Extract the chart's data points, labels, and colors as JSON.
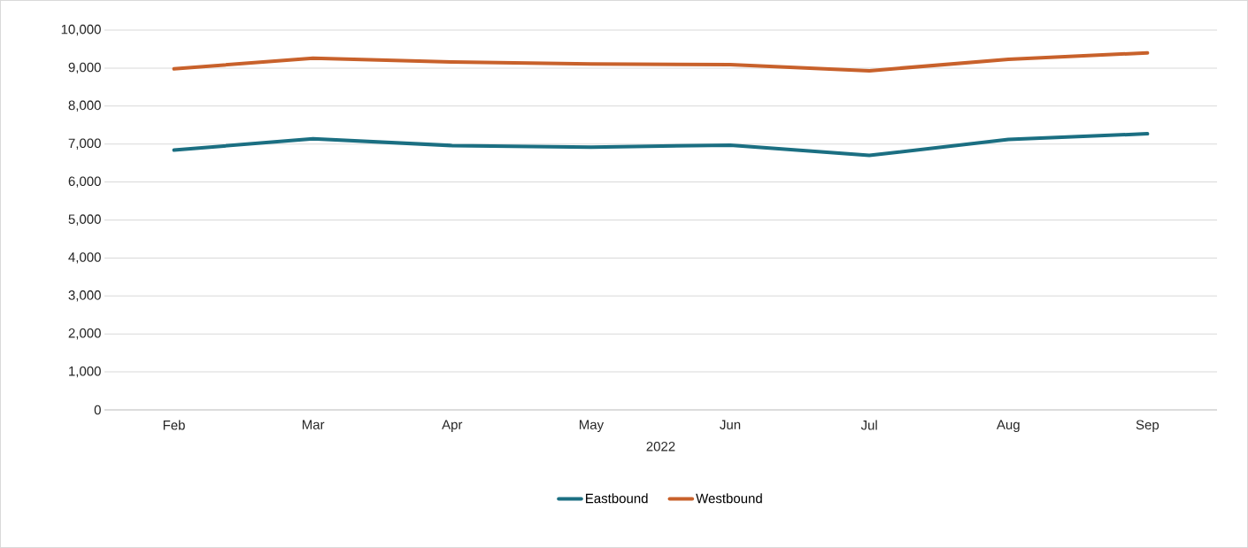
{
  "chart_data": {
    "type": "line",
    "xlabel": "2022",
    "categories": [
      "Feb",
      "Mar",
      "Apr",
      "May",
      "Jun",
      "Jul",
      "Aug",
      "Sep"
    ],
    "series": [
      {
        "name": "Eastbound",
        "color": "#1b6f82",
        "values": [
          6840,
          7140,
          6960,
          6920,
          6970,
          6700,
          7120,
          7270
        ]
      },
      {
        "name": "Westbound",
        "color": "#c8612b",
        "values": [
          8980,
          9260,
          9160,
          9110,
          9090,
          8930,
          9230,
          9400
        ]
      }
    ],
    "ylim": [
      0,
      10000
    ],
    "yticks": [
      {
        "value": 0,
        "label": "0"
      },
      {
        "value": 1000,
        "label": "1,000"
      },
      {
        "value": 2000,
        "label": "2,000"
      },
      {
        "value": 3000,
        "label": "3,000"
      },
      {
        "value": 4000,
        "label": "4,000"
      },
      {
        "value": 5000,
        "label": "5,000"
      },
      {
        "value": 6000,
        "label": "6,000"
      },
      {
        "value": 7000,
        "label": "7,000"
      },
      {
        "value": 8000,
        "label": "8,000"
      },
      {
        "value": 9000,
        "label": "9,000"
      },
      {
        "value": 10000,
        "label": "10,000"
      }
    ],
    "grid": "y",
    "legend": "bottom",
    "marker": "none",
    "line_style": "solid"
  }
}
